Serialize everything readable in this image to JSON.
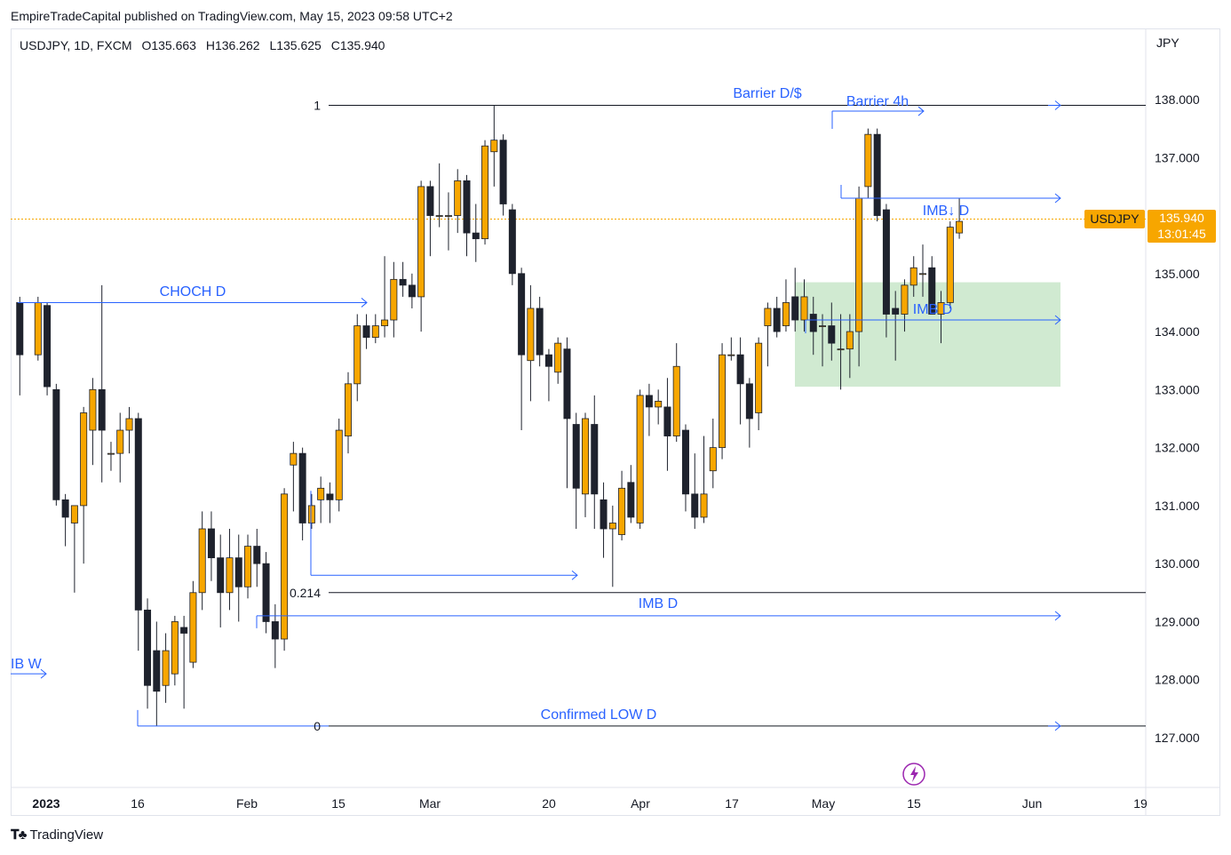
{
  "header": {
    "published": "EmpireTradeCapital published on TradingView.com, May 15, 2023 09:58 UTC+2"
  },
  "symbol_info": {
    "symbol": "USDJPY, 1D, FXCM",
    "open": "O135.663",
    "high": "H136.262",
    "low": "L135.625",
    "close": "C135.940"
  },
  "axis": {
    "currency": "JPY",
    "last_price_symbol": "USDJPY",
    "last_price": "135.940",
    "countdown": "13:01:45"
  },
  "footer": {
    "brand": "TradingView"
  },
  "colors": {
    "bull": "#f7a600",
    "bear": "#1e222d",
    "drawing": "#2962ff",
    "zone": "#c8e6c9"
  },
  "chart_data": {
    "type": "candlestick",
    "title": "USDJPY, 1D, FXCM",
    "ylabel": "JPY",
    "ylim": [
      126.0,
      139.0
    ],
    "y_ticks": [
      "138.000",
      "137.000",
      "136.000",
      "135.000",
      "134.000",
      "133.000",
      "132.000",
      "131.000",
      "130.000",
      "129.000",
      "128.000",
      "127.000"
    ],
    "x_ticks": [
      "2023",
      "16",
      "Feb",
      "15",
      "Mar",
      "20",
      "Apr",
      "17",
      "May",
      "15",
      "Jun",
      "19"
    ],
    "annotations": {
      "fib_1": "1",
      "fib_0214": "0.214",
      "fib_0": "0",
      "barrier_dd": "Barrier D/$",
      "barrier_4h": "Barrier 4h",
      "imb_down_d": "IMB↓ D",
      "imb_d_zone": "IMB D",
      "imb_d_low": "IMB D",
      "choch_d": "CHOCH D",
      "imb_w": "IB W",
      "confirmed_low": "Confirmed LOW D"
    },
    "levels": {
      "fib_1": 137.9,
      "fib_0214": 129.5,
      "fib_0": 127.2,
      "barrier_4h": 137.8,
      "imb_down_d": 136.3,
      "imb_d_zone_line": 134.2,
      "imb_d_low": 129.1,
      "choch": 134.5,
      "imb_w": 128.1,
      "feb_low_ray": 129.8,
      "last_price": 135.94
    },
    "zone": {
      "top": 134.85,
      "bottom": 133.05
    },
    "candles": [
      [
        1,
        134.5,
        133.6,
        134.6,
        132.9
      ],
      [
        3,
        133.6,
        134.5,
        134.6,
        133.5
      ],
      [
        4,
        134.45,
        133.05,
        134.5,
        132.9
      ],
      [
        5,
        133.0,
        131.1,
        133.1,
        131.0
      ],
      [
        6,
        131.1,
        130.8,
        131.2,
        130.3
      ],
      [
        7,
        130.7,
        131.0,
        131.0,
        129.5
      ],
      [
        8,
        131.0,
        132.6,
        132.7,
        130.0
      ],
      [
        9,
        132.3,
        133.0,
        133.2,
        131.7
      ],
      [
        10,
        133.0,
        132.3,
        134.8,
        131.4
      ],
      [
        11,
        131.9,
        131.9,
        132.1,
        131.6
      ],
      [
        12,
        131.9,
        132.3,
        132.6,
        131.4
      ],
      [
        13,
        132.3,
        132.5,
        132.7,
        131.9
      ],
      [
        14,
        132.5,
        129.2,
        132.6,
        128.5
      ],
      [
        15,
        129.2,
        127.9,
        129.4,
        127.5
      ],
      [
        16,
        128.5,
        127.8,
        129.0,
        127.2
      ],
      [
        17,
        127.9,
        128.5,
        128.8,
        127.6
      ],
      [
        18,
        128.1,
        129.0,
        129.1,
        127.9
      ],
      [
        19,
        128.9,
        128.8,
        129.1,
        127.5
      ],
      [
        20,
        128.3,
        129.5,
        129.7,
        128.2
      ],
      [
        21,
        129.5,
        130.6,
        130.9,
        129.2
      ],
      [
        22,
        130.6,
        130.1,
        130.9,
        129.7
      ],
      [
        23,
        130.1,
        129.5,
        130.5,
        128.9
      ],
      [
        24,
        129.5,
        130.1,
        130.6,
        129.2
      ],
      [
        25,
        130.1,
        129.6,
        130.5,
        129.0
      ],
      [
        26,
        129.6,
        130.3,
        130.5,
        129.4
      ],
      [
        27,
        130.3,
        130.0,
        130.6,
        129.6
      ],
      [
        28,
        130.0,
        129.0,
        130.2,
        128.8
      ],
      [
        29,
        129.0,
        128.7,
        129.3,
        128.2
      ],
      [
        30,
        128.7,
        131.2,
        131.3,
        128.5
      ],
      [
        31,
        131.7,
        131.9,
        132.1,
        130.9
      ],
      [
        32,
        131.9,
        130.7,
        132.0,
        130.4
      ],
      [
        33,
        130.7,
        131.0,
        131.2,
        130.6
      ],
      [
        34,
        131.1,
        131.3,
        131.5,
        130.7
      ],
      [
        35,
        131.2,
        131.1,
        131.4,
        130.7
      ],
      [
        36,
        131.1,
        132.3,
        132.5,
        130.9
      ],
      [
        37,
        132.2,
        133.1,
        133.3,
        131.9
      ],
      [
        38,
        133.1,
        134.1,
        134.3,
        132.8
      ],
      [
        39,
        134.1,
        133.9,
        134.3,
        133.7
      ],
      [
        40,
        133.9,
        134.1,
        134.3,
        133.8
      ],
      [
        41,
        134.1,
        134.2,
        135.3,
        133.9
      ],
      [
        42,
        134.2,
        134.9,
        135.2,
        133.9
      ],
      [
        43,
        134.9,
        134.8,
        135.2,
        134.6
      ],
      [
        44,
        134.8,
        134.6,
        135.0,
        134.4
      ],
      [
        45,
        134.6,
        136.5,
        136.6,
        134.0
      ],
      [
        46,
        136.5,
        136.0,
        136.6,
        135.3
      ],
      [
        47,
        136.0,
        136.0,
        136.9,
        135.8
      ],
      [
        48,
        136.0,
        136.0,
        136.4,
        135.4
      ],
      [
        49,
        136.0,
        136.6,
        136.8,
        135.7
      ],
      [
        50,
        136.6,
        135.7,
        136.7,
        135.3
      ],
      [
        51,
        135.7,
        135.6,
        136.2,
        135.2
      ],
      [
        52,
        135.6,
        137.2,
        137.3,
        135.5
      ],
      [
        53,
        137.1,
        137.3,
        137.9,
        136.5
      ],
      [
        54,
        137.3,
        136.2,
        137.4,
        136.0
      ],
      [
        55,
        136.1,
        135.0,
        136.2,
        134.8
      ],
      [
        56,
        135.0,
        133.6,
        135.1,
        132.3
      ],
      [
        57,
        133.5,
        134.4,
        134.8,
        132.8
      ],
      [
        58,
        134.4,
        133.6,
        134.6,
        133.4
      ],
      [
        59,
        133.6,
        133.4,
        133.7,
        132.8
      ],
      [
        60,
        133.3,
        133.8,
        133.9,
        133.1
      ],
      [
        61,
        133.7,
        132.5,
        133.9,
        131.3
      ],
      [
        62,
        132.4,
        131.3,
        132.6,
        130.6
      ],
      [
        63,
        131.2,
        132.5,
        132.6,
        130.8
      ],
      [
        64,
        132.4,
        131.2,
        132.9,
        130.6
      ],
      [
        65,
        131.1,
        130.6,
        131.4,
        130.1
      ],
      [
        66,
        130.6,
        130.7,
        131.0,
        129.6
      ],
      [
        67,
        130.5,
        131.3,
        131.6,
        130.4
      ],
      [
        68,
        131.4,
        130.8,
        131.7,
        130.7
      ],
      [
        69,
        130.7,
        132.9,
        133.0,
        130.6
      ],
      [
        70,
        132.9,
        132.7,
        133.1,
        132.2
      ],
      [
        71,
        132.7,
        132.8,
        133.0,
        132.4
      ],
      [
        72,
        132.7,
        132.2,
        133.2,
        131.6
      ],
      [
        73,
        132.2,
        133.4,
        133.8,
        132.1
      ],
      [
        74,
        132.3,
        131.2,
        132.4,
        130.9
      ],
      [
        75,
        131.2,
        130.8,
        131.9,
        130.6
      ],
      [
        76,
        130.8,
        131.2,
        132.2,
        130.7
      ],
      [
        77,
        131.6,
        132.0,
        132.5,
        131.3
      ],
      [
        78,
        132.0,
        133.6,
        133.8,
        131.8
      ],
      [
        79,
        133.6,
        133.6,
        133.9,
        133.5
      ],
      [
        80,
        133.6,
        133.1,
        133.9,
        132.4
      ],
      [
        81,
        133.1,
        132.5,
        133.2,
        132.0
      ],
      [
        82,
        132.6,
        133.8,
        133.9,
        132.3
      ],
      [
        83,
        134.1,
        134.4,
        134.5,
        133.4
      ],
      [
        84,
        134.4,
        134.0,
        134.6,
        133.9
      ],
      [
        85,
        134.1,
        134.5,
        134.9,
        134.0
      ],
      [
        86,
        134.6,
        134.2,
        135.1,
        134.0
      ],
      [
        87,
        134.2,
        134.6,
        134.9,
        134.0
      ],
      [
        88,
        134.3,
        134.0,
        134.6,
        133.6
      ],
      [
        89,
        134.1,
        134.1,
        134.3,
        133.4
      ],
      [
        90,
        134.1,
        133.8,
        134.5,
        133.5
      ],
      [
        91,
        133.7,
        133.7,
        134.3,
        133.0
      ],
      [
        92,
        133.7,
        134.0,
        134.3,
        133.2
      ],
      [
        93,
        134.0,
        136.3,
        136.5,
        133.4
      ],
      [
        94,
        136.5,
        137.4,
        137.5,
        136.3
      ],
      [
        95,
        137.4,
        136.0,
        137.5,
        135.9
      ],
      [
        96,
        136.1,
        134.3,
        136.2,
        133.9
      ],
      [
        97,
        134.4,
        134.3,
        134.7,
        133.5
      ],
      [
        98,
        134.3,
        134.8,
        134.9,
        134.0
      ],
      [
        99,
        134.8,
        135.1,
        135.3,
        134.6
      ],
      [
        100,
        135.0,
        135.0,
        135.5,
        134.6
      ],
      [
        101,
        135.1,
        134.3,
        135.3,
        134.3
      ],
      [
        102,
        134.3,
        134.5,
        134.7,
        133.8
      ],
      [
        103,
        134.5,
        135.8,
        135.9,
        134.4
      ],
      [
        104,
        135.7,
        135.9,
        136.3,
        135.6
      ]
    ]
  }
}
